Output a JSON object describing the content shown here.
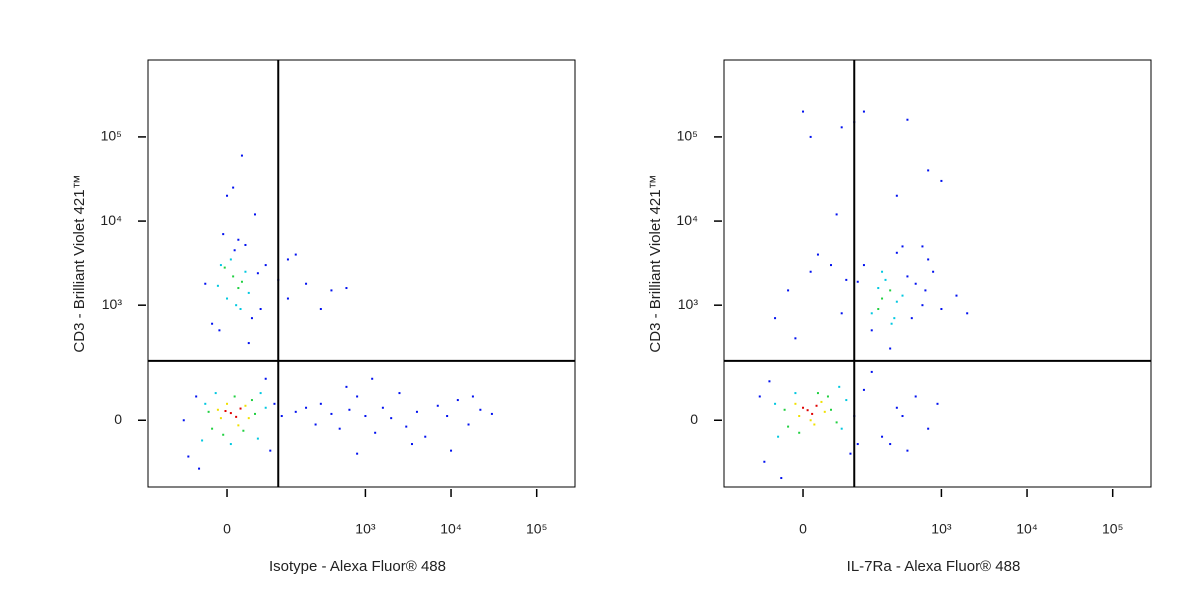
{
  "chart_data": [
    {
      "type": "scatter",
      "scale": "biexponential",
      "x_label": "Isotype - Alexa Fluor® 488",
      "y_label": "CD3 - Brilliant Violet 421™",
      "xlim": [
        -200,
        280000
      ],
      "ylim": [
        -260,
        820000
      ],
      "xticks": [
        0,
        {
          "value": 1000,
          "label": "10³"
        },
        {
          "value": 10000,
          "label": "10⁴"
        },
        {
          "value": 100000,
          "label": "10⁵"
        }
      ],
      "yticks": [
        0,
        {
          "value": 1000,
          "label": "10³"
        },
        {
          "value": 10000,
          "label": "10⁴"
        },
        {
          "value": 100000,
          "label": "10⁵"
        }
      ],
      "gates": {
        "x": 90,
        "y": 210
      },
      "series": [
        {
          "color": "#e00000",
          "x": [
            5,
            12,
            -2,
            18
          ],
          "y": [
            17,
            8,
            22,
            28
          ]
        },
        {
          "color": "#f0e000",
          "x": [
            -8,
            25,
            15,
            30,
            0,
            -12
          ],
          "y": [
            5,
            35,
            -12,
            5,
            40,
            25
          ]
        },
        {
          "color": "#20d040",
          "x": [
            -20,
            35,
            -5,
            10,
            40,
            -25,
            22,
            8,
            15,
            -3,
            20
          ],
          "y": [
            -20,
            50,
            -35,
            60,
            15,
            20,
            -25,
            2200,
            1600,
            2800,
            1900
          ]
        },
        {
          "color": "#00c8e0",
          "x": [
            -35,
            50,
            -15,
            45,
            5,
            -30,
            60,
            0,
            12,
            -8,
            25,
            18,
            5,
            30,
            -12
          ],
          "y": [
            -50,
            70,
            70,
            -45,
            -60,
            40,
            30,
            1200,
            1000,
            3000,
            2500,
            900,
            3500,
            1400,
            1700
          ]
        },
        {
          "color": "#0010f0",
          "x": [
            -20,
            35,
            10,
            -30,
            45,
            -10,
            25,
            50,
            15,
            -5,
            30,
            60,
            90,
            120,
            40,
            0,
            -60,
            -45,
            70,
            80,
            -40,
            100,
            60,
            -70,
            150,
            200,
            260,
            300,
            400,
            500,
            650,
            800,
            1000,
            1300,
            1600,
            2000,
            2500,
            3000,
            4000,
            5000,
            7000,
            9000,
            12000,
            16000,
            22000,
            30000,
            1200,
            3500,
            800,
            600,
            10000,
            18000,
            20,
            8,
            200,
            300,
            400,
            120,
            150,
            600
          ],
          "y": [
            600,
            700,
            4500,
            1800,
            2400,
            500,
            5200,
            900,
            6000,
            7000,
            350,
            3000,
            2000,
            1200,
            12000,
            20000,
            -100,
            60,
            -80,
            40,
            -150,
            10,
            120,
            0,
            20,
            30,
            -10,
            40,
            15,
            -20,
            25,
            60,
            10,
            -30,
            30,
            5,
            70,
            -15,
            20,
            -40,
            35,
            10,
            50,
            -10,
            25,
            15,
            120,
            -60,
            -90,
            90,
            -80,
            60,
            60000,
            25000,
            1800,
            900,
            1500,
            3500,
            4000,
            1600
          ]
        }
      ]
    },
    {
      "type": "scatter",
      "scale": "biexponential",
      "x_label": "IL-7Ra - Alexa Fluor® 488",
      "y_label": "CD3 - Brilliant Violet 421™",
      "xlim": [
        -200,
        280000
      ],
      "ylim": [
        -260,
        820000
      ],
      "xticks": [
        0,
        {
          "value": 1000,
          "label": "10³"
        },
        {
          "value": 10000,
          "label": "10⁴"
        },
        {
          "value": 100000,
          "label": "10⁵"
        }
      ],
      "yticks": [
        0,
        {
          "value": 1000,
          "label": "10³"
        },
        {
          "value": 10000,
          "label": "10⁴"
        },
        {
          "value": 100000,
          "label": "10⁵"
        }
      ],
      "gates": {
        "x": 90,
        "y": 210
      },
      "series": [
        {
          "color": "#e00000",
          "x": [
            6,
            12,
            0,
            18
          ],
          "y": [
            24,
            15,
            30,
            35
          ]
        },
        {
          "color": "#f0e000",
          "x": [
            -5,
            25,
            10,
            30,
            -10,
            15
          ],
          "y": [
            10,
            45,
            0,
            20,
            40,
            -10
          ]
        },
        {
          "color": "#20d040",
          "x": [
            -20,
            35,
            -5,
            40,
            20,
            -25,
            50,
            200,
            250,
            180
          ],
          "y": [
            -15,
            60,
            -30,
            25,
            70,
            25,
            -5,
            1200,
            1500,
            900
          ]
        },
        {
          "color": "#00c8e0",
          "x": [
            -35,
            55,
            -10,
            60,
            -40,
            70,
            150,
            220,
            300,
            260,
            180,
            350,
            200,
            280
          ],
          "y": [
            -40,
            90,
            70,
            -20,
            40,
            50,
            800,
            2000,
            1100,
            600,
            1600,
            1300,
            2500,
            700
          ]
        },
        {
          "color": "#0010f0",
          "x": [
            -60,
            -50,
            80,
            -70,
            90,
            100,
            -30,
            120,
            400,
            500,
            600,
            700,
            150,
            300,
            450,
            650,
            100,
            350,
            800,
            1000,
            1500,
            2000,
            250,
            -20,
            10,
            40,
            -40,
            60,
            20,
            -10,
            70,
            120,
            200,
            300,
            400,
            500,
            700,
            900,
            150,
            250,
            350,
            10,
            60,
            90,
            120,
            400,
            700,
            300,
            1000,
            600,
            50,
            0
          ],
          "y": [
            -120,
            110,
            -90,
            60,
            10,
            -60,
            -200,
            3000,
            2200,
            1800,
            1000,
            3500,
            500,
            4200,
            700,
            1500,
            1900,
            5000,
            2500,
            900,
            1300,
            800,
            300,
            1500,
            2500,
            3000,
            700,
            800,
            4000,
            400,
            2000,
            80,
            -40,
            30,
            -80,
            60,
            -20,
            40,
            150,
            -60,
            10,
            100000,
            130000,
            150000,
            200000,
            160000,
            40000,
            20000,
            30000,
            5000,
            12000,
            200000
          ]
        }
      ]
    }
  ]
}
